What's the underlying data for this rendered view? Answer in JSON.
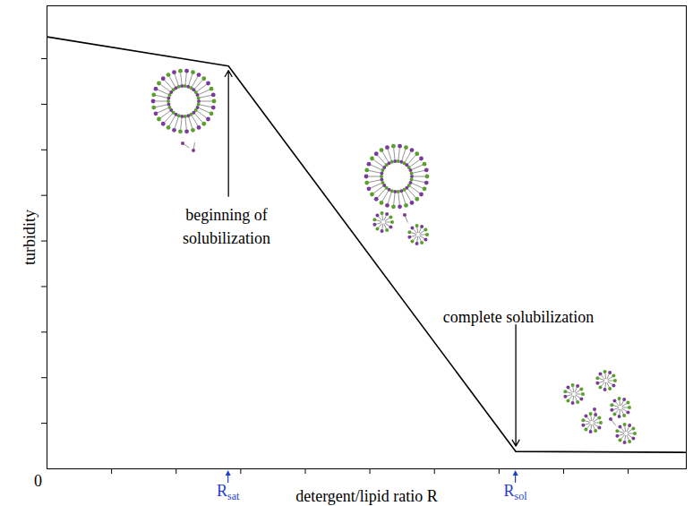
{
  "chart_data": {
    "type": "line",
    "x_label": "detergent/lipid ratio R",
    "y_label": "turbidity",
    "x": [
      0,
      2.81,
      7.26,
      9.9
    ],
    "values": [
      4.74,
      4.42,
      0.19,
      0.18
    ],
    "color": "#000000",
    "xlim": [
      0,
      9.9
    ],
    "ylim": [
      0,
      5.08
    ],
    "xticks": [
      1,
      2,
      3,
      4,
      5,
      6,
      7,
      8,
      9
    ],
    "yticks": [
      0.5,
      1,
      1.5,
      2,
      2.5,
      3,
      3.5,
      4,
      4.5
    ],
    "tick_labels": false,
    "grid": false,
    "origin_label": "0",
    "annotations": [
      {
        "text": "beginning of\nsolubilization",
        "x": 2.78,
        "y": 2.83,
        "arrow_from": [
          2.81,
          2.99
        ],
        "arrow_to": [
          2.81,
          4.37
        ]
      },
      {
        "text": "complete solubilization",
        "x": 7.3,
        "y": 1.71,
        "arrow_from": [
          7.26,
          1.58
        ],
        "arrow_to": [
          7.26,
          0.25
        ]
      }
    ],
    "markers": [
      {
        "base": "R",
        "sub": "sat",
        "x": 2.81,
        "color": "#1f3fd0"
      },
      {
        "base": "R",
        "sub": "sol",
        "x": 7.26,
        "color": "#1f3fd0"
      }
    ]
  }
}
